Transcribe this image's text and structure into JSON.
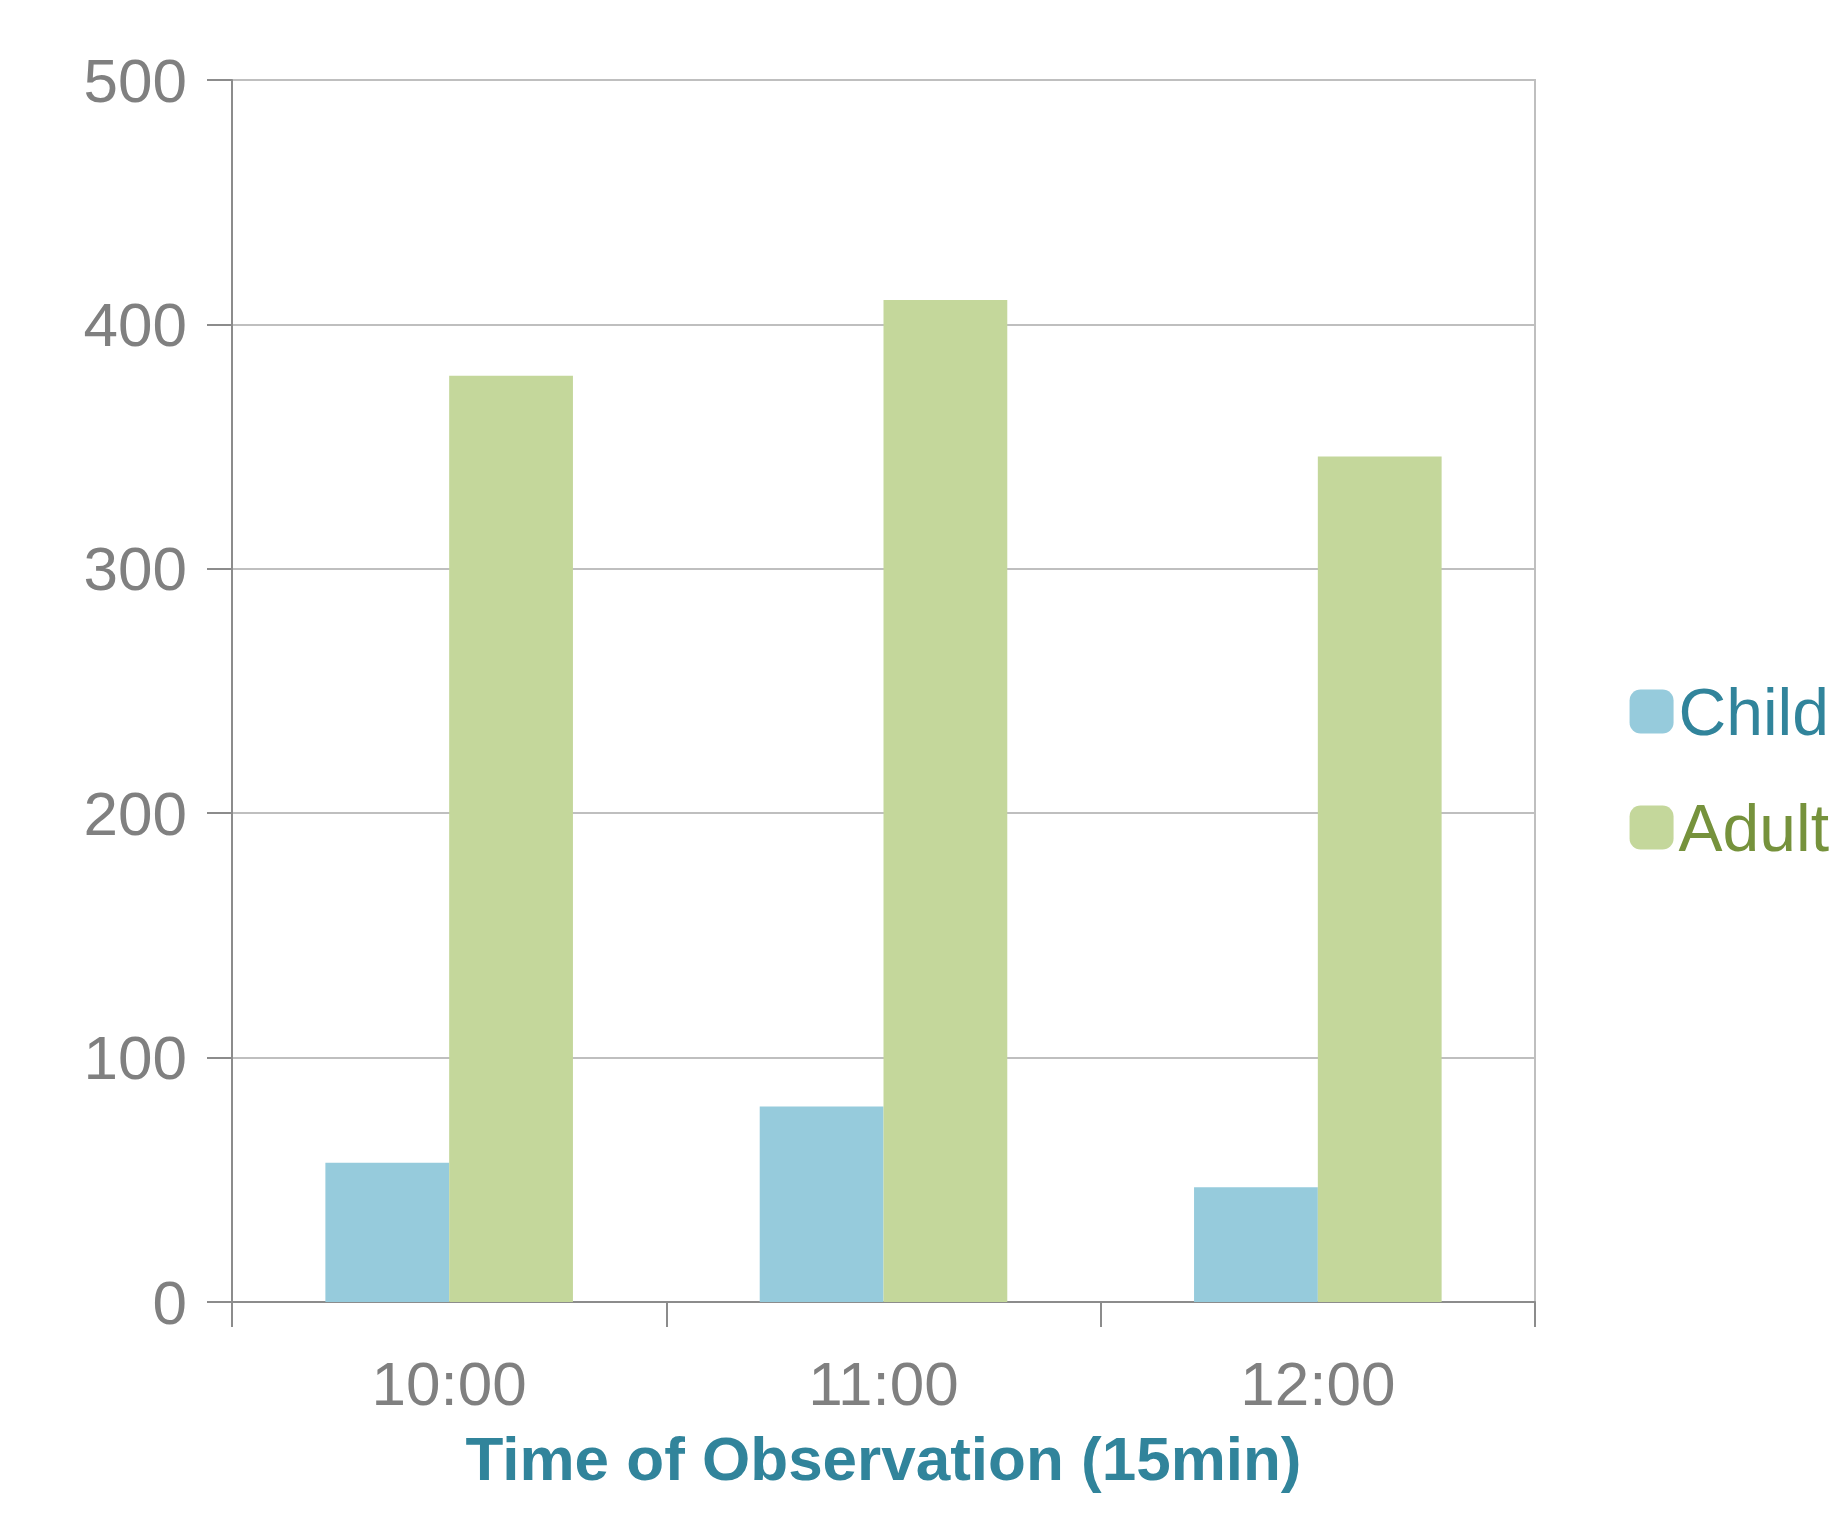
{
  "chart_data": {
    "type": "bar",
    "xlabel": "Time of Observation (15min)",
    "categories": [
      "10:00",
      "11:00",
      "12:00"
    ],
    "series": [
      {
        "name": "Child",
        "color": "#96cbdc",
        "values": [
          57,
          80,
          47
        ]
      },
      {
        "name": "Adult",
        "color": "#c4d79b",
        "values": [
          379,
          410,
          346
        ]
      }
    ],
    "ylim": [
      0,
      500
    ],
    "yticks": [
      0,
      100,
      200,
      300,
      400,
      500
    ],
    "grid": "y",
    "legend": "right"
  }
}
